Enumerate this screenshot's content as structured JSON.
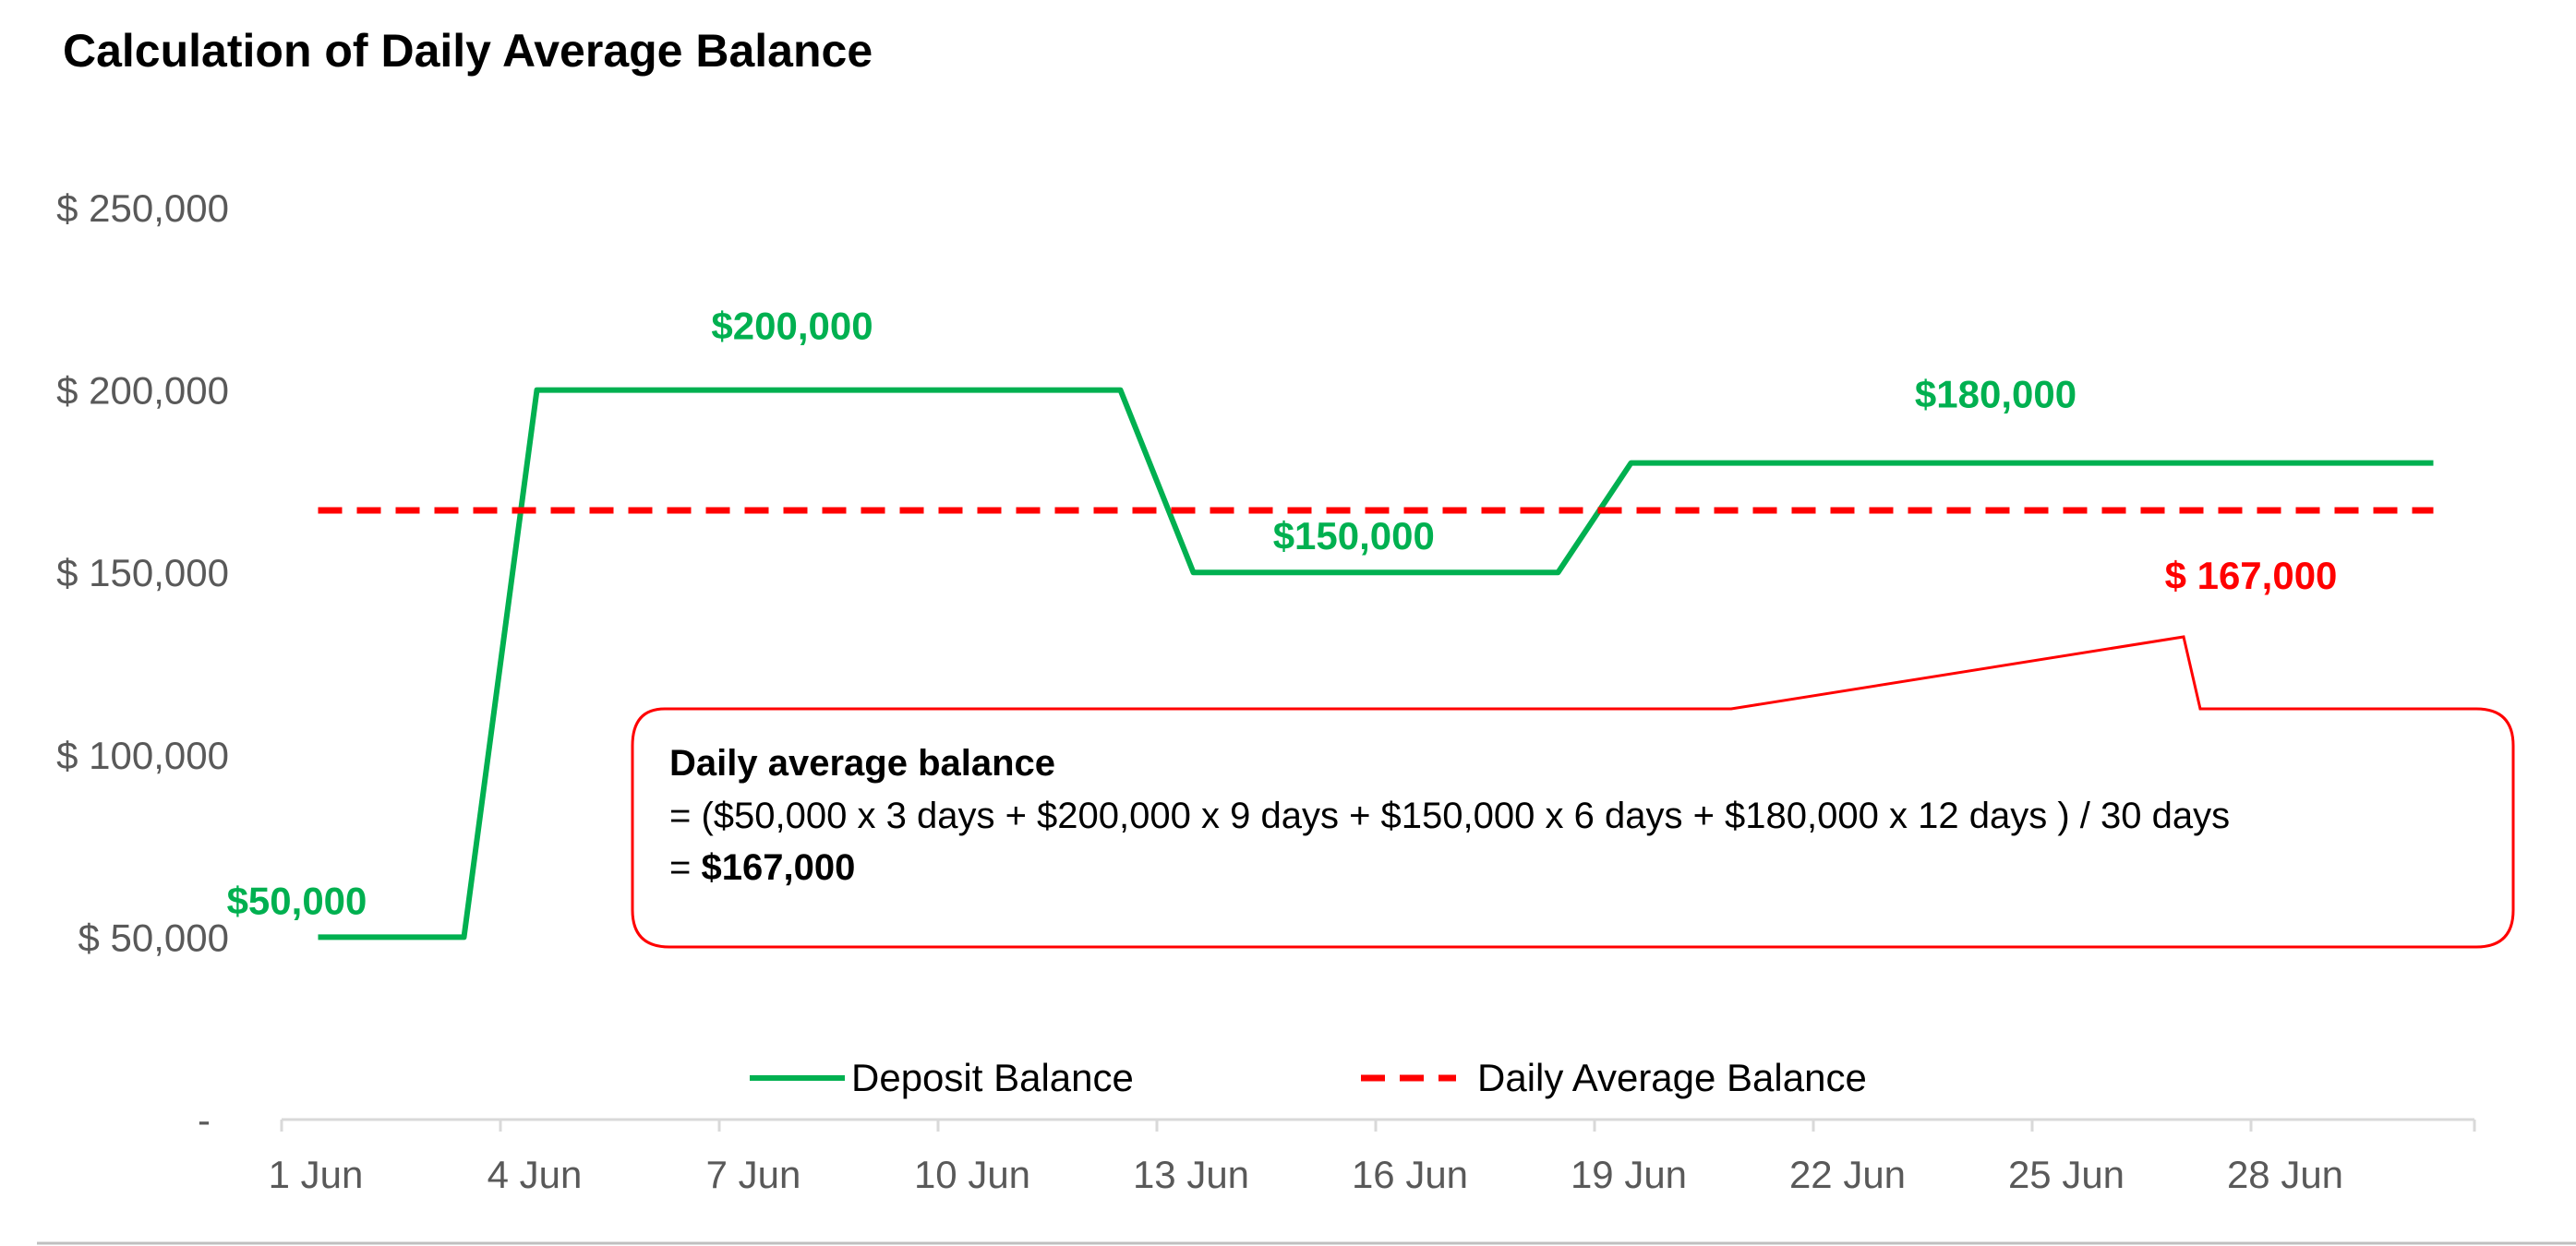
{
  "chart_data": {
    "type": "line",
    "title": "Calculation of Daily Average Balance",
    "x_ticks": [
      "1 Jun",
      "4 Jun",
      "7 Jun",
      "10 Jun",
      "13 Jun",
      "16 Jun",
      "19 Jun",
      "22 Jun",
      "25 Jun",
      "28 Jun"
    ],
    "y_ticks": [
      "-",
      "$ 50,000",
      "$ 100,000",
      "$ 150,000",
      "$ 200,000",
      "$ 250,000"
    ],
    "ylim": [
      0,
      250000
    ],
    "xlim": [
      1,
      31
    ],
    "series": [
      {
        "name": "Deposit Balance",
        "color": "#00B050",
        "style": "solid",
        "points": [
          {
            "x": 1.5,
            "y": 50000
          },
          {
            "x": 3.5,
            "y": 50000
          },
          {
            "x": 4.5,
            "y": 200000
          },
          {
            "x": 12.5,
            "y": 200000
          },
          {
            "x": 13.5,
            "y": 150000
          },
          {
            "x": 18.5,
            "y": 150000
          },
          {
            "x": 19.5,
            "y": 180000
          },
          {
            "x": 30.5,
            "y": 180000
          }
        ]
      },
      {
        "name": "Daily Average Balance",
        "color": "#FF0000",
        "style": "dashed",
        "points": [
          {
            "x": 1.5,
            "y": 167000
          },
          {
            "x": 30.5,
            "y": 167000
          }
        ]
      }
    ],
    "data_labels": [
      {
        "text": "$50,000",
        "x": 1.5,
        "y": 50000,
        "color": "#00B050"
      },
      {
        "text": "$200,000",
        "x": 8.0,
        "y": 200000,
        "color": "#00B050"
      },
      {
        "text": "$150,000",
        "x": 15.7,
        "y": 150000,
        "color": "#00B050"
      },
      {
        "text": "$180,000",
        "x": 24.5,
        "y": 180000,
        "color": "#00B050"
      },
      {
        "text": "$ 167,000",
        "x": 28.0,
        "y": 167000,
        "color": "#FF0000"
      }
    ],
    "legend": {
      "position": "bottom"
    },
    "annotation": {
      "heading": "Daily average balance",
      "formula": "= ($50,000 x 3 days + $200,000 x 9 days + $150,000 x 6 days + $180,000 x 12 days ) / 30 days",
      "result_prefix": "= ",
      "result": "$167,000",
      "border_color": "#FF0000"
    },
    "grid": false
  }
}
